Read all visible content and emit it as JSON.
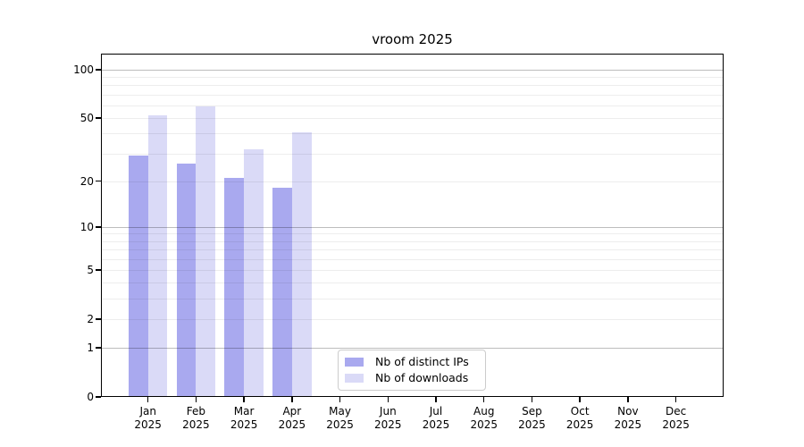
{
  "title": "vroom 2025",
  "legend": {
    "items": [
      {
        "label": "Nb of distinct IPs",
        "color": "#a9a9ef"
      },
      {
        "label": "Nb of downloads",
        "color": "#dadaf7"
      }
    ]
  },
  "chart_data": {
    "type": "bar",
    "title": "vroom 2025",
    "categories": [
      "Jan",
      "Feb",
      "Mar",
      "Apr",
      "May",
      "Jun",
      "Jul",
      "Aug",
      "Sep",
      "Oct",
      "Nov",
      "Dec"
    ],
    "year_label": "2025",
    "series": [
      {
        "name": "Nb of distinct IPs",
        "color": "#a9a9ef",
        "values": [
          29,
          26,
          21,
          18,
          null,
          null,
          null,
          null,
          null,
          null,
          null,
          null
        ]
      },
      {
        "name": "Nb of downloads",
        "color": "#dadaf7",
        "values": [
          52,
          59,
          32,
          41,
          null,
          null,
          null,
          null,
          null,
          null,
          null,
          null
        ]
      }
    ],
    "y_scale": "log(value+1)",
    "y_ticks": [
      0,
      1,
      2,
      5,
      10,
      20,
      50,
      100
    ],
    "y_major_gridlines": [
      1,
      10,
      100
    ],
    "y_minor_gridlines": [
      2,
      3,
      4,
      5,
      6,
      7,
      8,
      9,
      20,
      30,
      40,
      50,
      60,
      70,
      80,
      90
    ],
    "ylim": [
      0,
      126
    ],
    "grid": "horizontal",
    "legend_position": "bottom-center"
  }
}
